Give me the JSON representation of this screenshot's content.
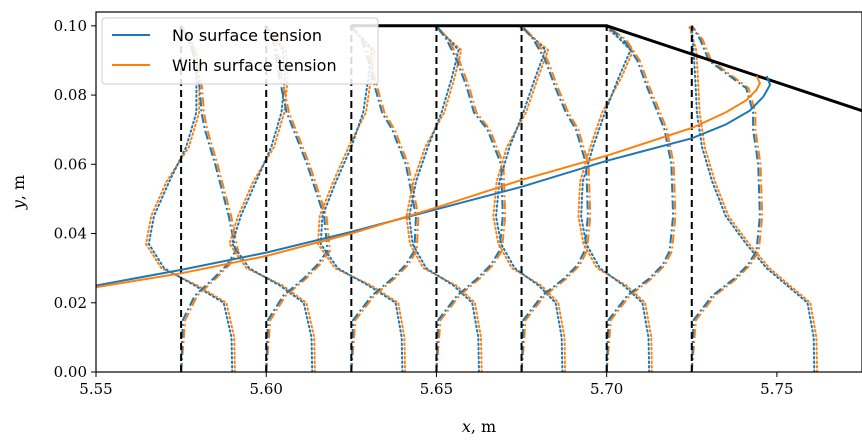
{
  "chart_data": {
    "type": "line",
    "title": "",
    "xlabel": "x, m",
    "ylabel": "y, m",
    "xlim": [
      5.55,
      5.775
    ],
    "ylim": [
      0.0,
      0.104
    ],
    "xticks": [
      5.55,
      5.6,
      5.65,
      5.7,
      5.75
    ],
    "xtick_labels": [
      "5.55",
      "5.60",
      "5.65",
      "5.70",
      "5.75"
    ],
    "yticks": [
      0.0,
      0.02,
      0.04,
      0.06,
      0.08,
      0.1
    ],
    "ytick_labels": [
      "0.00",
      "0.02",
      "0.04",
      "0.06",
      "0.08",
      "0.10"
    ],
    "grid": false,
    "legend_position": "top-left",
    "colors": {
      "no_surface_tension": "#1f77b4",
      "with_surface_tension": "#ff7f0e",
      "wall": "#000000"
    },
    "series": [
      {
        "name": "No surface tension",
        "color": "#1f77b4",
        "x": [
          5.55,
          5.575,
          5.6,
          5.625,
          5.65,
          5.675,
          5.7,
          5.725,
          5.735,
          5.742,
          5.746,
          5.748,
          5.747
        ],
        "y": [
          0.025,
          0.0295,
          0.0345,
          0.0405,
          0.047,
          0.0535,
          0.061,
          0.0675,
          0.0715,
          0.0755,
          0.0795,
          0.083,
          0.0855
        ]
      },
      {
        "name": "With surface tension",
        "color": "#ff7f0e",
        "x": [
          5.55,
          5.575,
          5.6,
          5.625,
          5.65,
          5.675,
          5.7,
          5.725,
          5.735,
          5.741,
          5.744,
          5.745,
          5.744
        ],
        "y": [
          0.0245,
          0.0285,
          0.0335,
          0.04,
          0.0475,
          0.0555,
          0.0625,
          0.0705,
          0.075,
          0.0785,
          0.0815,
          0.0835,
          0.0855
        ]
      }
    ],
    "wall": {
      "x": [
        5.625,
        5.7,
        5.775
      ],
      "y": [
        0.1,
        0.1,
        0.0755
      ]
    },
    "stations": [
      5.575,
      5.6,
      5.625,
      5.65,
      5.675,
      5.7,
      5.725
    ],
    "profiles": {
      "dashdot_ys": [
        0.0,
        0.015,
        0.022,
        0.027,
        0.031,
        0.035,
        0.045,
        0.06,
        0.07,
        0.075,
        0.082,
        0.09,
        0.096,
        0.1
      ],
      "dashdot_dx": [
        [
          0.0,
          0.0005,
          0.004,
          0.0095,
          0.0135,
          0.016,
          0.014,
          0.01,
          0.007,
          0.006,
          0.0055,
          0.004,
          0.0025,
          0.0
        ],
        [
          0.0,
          0.0005,
          0.005,
          0.011,
          0.015,
          0.018,
          0.017,
          0.012,
          0.008,
          0.006,
          0.0045,
          0.003,
          0.002,
          0.0
        ],
        [
          0.0,
          0.0005,
          0.006,
          0.012,
          0.016,
          0.0185,
          0.019,
          0.016,
          0.012,
          0.009,
          0.007,
          0.005,
          0.003,
          0.0
        ],
        [
          0.0,
          0.0005,
          0.006,
          0.012,
          0.016,
          0.0185,
          0.0195,
          0.019,
          0.015,
          0.011,
          0.009,
          0.006,
          0.003,
          0.0
        ],
        [
          0.0,
          0.0005,
          0.006,
          0.0125,
          0.0165,
          0.0185,
          0.0195,
          0.019,
          0.016,
          0.013,
          0.01,
          0.007,
          0.0035,
          0.0
        ],
        [
          0.0,
          0.0005,
          0.006,
          0.0125,
          0.0165,
          0.0185,
          0.0195,
          0.019,
          0.017,
          0.015,
          0.012,
          0.009,
          0.005,
          0.0
        ],
        [
          0.0,
          0.0005,
          0.006,
          0.0125,
          0.0165,
          0.019,
          0.02,
          0.0195,
          0.018,
          0.018,
          0.016,
          0.005,
          0.0025,
          0.0
        ]
      ],
      "dotted_ys": [
        0.0,
        0.01,
        0.02,
        0.025,
        0.03,
        0.037,
        0.045,
        0.055,
        0.065,
        0.075,
        0.085,
        0.093,
        0.1
      ],
      "dotted_dx": [
        [
          0.015,
          0.0148,
          0.0125,
          0.004,
          -0.005,
          -0.0095,
          -0.008,
          -0.0035,
          0.0015,
          0.0045,
          0.0045,
          0.0035,
          0.0
        ],
        [
          0.0135,
          0.0133,
          0.011,
          0.004,
          -0.005,
          -0.01,
          -0.0075,
          -0.003,
          0.0015,
          0.0045,
          0.0055,
          0.005,
          0.0
        ],
        [
          0.015,
          0.0148,
          0.013,
          0.005,
          -0.004,
          -0.009,
          -0.0085,
          -0.0045,
          0.0,
          0.0035,
          0.005,
          0.006,
          0.0
        ],
        [
          0.0125,
          0.0123,
          0.0105,
          0.005,
          -0.003,
          -0.007,
          -0.008,
          -0.006,
          -0.0025,
          0.0015,
          0.0045,
          0.0065,
          0.0
        ],
        [
          0.012,
          0.0118,
          0.01,
          0.005,
          -0.002,
          -0.006,
          -0.0075,
          -0.0065,
          -0.0035,
          0.0005,
          0.004,
          0.007,
          0.0
        ],
        [
          0.0125,
          0.0123,
          0.0105,
          0.005,
          -0.002,
          -0.006,
          -0.0075,
          -0.007,
          -0.004,
          -0.0005,
          0.0035,
          0.007,
          0.0
        ],
        [
          0.036,
          0.0358,
          0.034,
          0.028,
          0.022,
          0.016,
          0.01,
          0.006,
          0.003,
          0.0015,
          0.001,
          0.0005,
          0.0
        ]
      ]
    }
  }
}
